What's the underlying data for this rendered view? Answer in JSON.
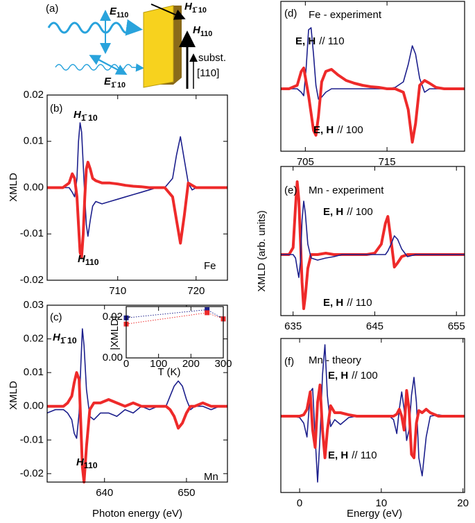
{
  "diagram": {
    "label": "(a)",
    "e_top": {
      "text": "E",
      "sub": "110"
    },
    "e_bottom": {
      "text": "E",
      "sub": "1̄ 10"
    },
    "h_slant": {
      "text": "H",
      "sub": "1̄ 10"
    },
    "h_up": {
      "text": "H",
      "sub": "110"
    },
    "subst": "subst.",
    "direction": "[110]"
  },
  "chart_data": [
    {
      "type": "line",
      "panel_label": "(b)",
      "ylabel": "XMLD",
      "x": [
        701,
        702,
        703,
        703.8,
        704.2,
        704.5,
        704.8,
        705.0,
        705.2,
        705.4,
        705.6,
        705.8,
        706.0,
        706.2,
        706.5,
        706.8,
        707.2,
        708,
        709,
        710,
        711,
        712,
        713,
        714,
        715,
        716,
        717,
        717.5,
        718,
        718.5,
        719,
        719.5,
        720,
        721,
        722,
        723,
        724
      ],
      "xlim": [
        701,
        724
      ],
      "xticks": [
        710,
        720
      ],
      "ylim": [
        -0.02,
        0.02
      ],
      "yticks": [
        {
          "value": -0.02,
          "label": "-0.02"
        },
        {
          "value": -0.01,
          "label": "-0.01"
        },
        {
          "value": 0,
          "label": "0.00"
        },
        {
          "value": 0.01,
          "label": "0.01"
        },
        {
          "value": 0.02,
          "label": "0.02"
        }
      ],
      "series": [
        {
          "color": "#1c1f8c",
          "style": "thin",
          "values": [
            0,
            0,
            0,
            0,
            -0.001,
            -0.002,
            0.002,
            0.01,
            0.014,
            0.012,
            0.005,
            -0.002,
            -0.008,
            -0.0105,
            -0.007,
            -0.004,
            -0.003,
            -0.0035,
            -0.003,
            -0.0025,
            -0.002,
            -0.0015,
            -0.001,
            -0.0005,
            0,
            0,
            0.002,
            0.007,
            0.011,
            0.006,
            0.001,
            -0.0005,
            0,
            0,
            0,
            0,
            0
          ]
        },
        {
          "color": "#ee2a2a",
          "style": "thick",
          "values": [
            0,
            0,
            0,
            0.001,
            0.003,
            0.002,
            -0.002,
            -0.008,
            -0.014,
            -0.015,
            -0.01,
            -0.002,
            0.004,
            0.0055,
            0.004,
            0.002,
            0.0015,
            0.001,
            0.001,
            0.0008,
            0.0005,
            0.0003,
            0.0002,
            0,
            0,
            0,
            -0.002,
            -0.007,
            -0.012,
            -0.006,
            0.001,
            0.0005,
            0,
            0,
            0,
            0,
            0
          ]
        }
      ],
      "annotations": [
        {
          "text": "H",
          "sub": "1̄ 10",
          "color": "#1d2a6e",
          "style": "bold-italic"
        },
        {
          "text": "H",
          "sub": "110",
          "color": "#ee2a2a",
          "style": "bold-italic"
        },
        {
          "text": "Fe",
          "color": "#000000",
          "style": "normal"
        }
      ]
    },
    {
      "type": "line",
      "panel_label": "(c)",
      "ylabel": "XMLD",
      "xlabel": "Photon energy (eV)",
      "x": [
        633,
        634,
        635,
        635.5,
        636,
        636.3,
        636.6,
        636.9,
        637.1,
        637.3,
        637.5,
        637.8,
        638.2,
        638.7,
        639.5,
        640.5,
        641.5,
        642.5,
        643.5,
        644.5,
        645.5,
        646.5,
        647.5,
        648,
        648.5,
        649,
        649.5,
        650,
        650.5,
        651,
        652,
        653,
        654,
        655
      ],
      "xlim": [
        633,
        655
      ],
      "xticks": [
        640,
        650
      ],
      "ylim": [
        -0.0225,
        0.03
      ],
      "yticks": [
        {
          "value": -0.02,
          "label": "-0.02"
        },
        {
          "value": -0.01,
          "label": "-0.01"
        },
        {
          "value": 0,
          "label": "0.00"
        },
        {
          "value": 0.01,
          "label": "0.01"
        },
        {
          "value": 0.02,
          "label": "0.02"
        },
        {
          "value": 0.03,
          "label": "0.03"
        }
      ],
      "series": [
        {
          "color": "#1c1f8c",
          "style": "thin",
          "values": [
            -0.002,
            -0.001,
            -0.001,
            -0.002,
            -0.004,
            -0.008,
            -0.0095,
            -0.002,
            0.012,
            0.023,
            0.018,
            0.005,
            -0.003,
            -0.004,
            -0.002,
            -0.002,
            -0.003,
            -0.001,
            -0.002,
            0,
            -0.001,
            0,
            0,
            0.003,
            0.006,
            0.0075,
            0.006,
            0.002,
            -0.001,
            0,
            0,
            -0.001,
            0,
            0
          ]
        },
        {
          "color": "#ee2a2a",
          "style": "thick",
          "values": [
            0,
            0,
            0,
            0.001,
            0.003,
            0.007,
            0.01,
            0.008,
            -0.005,
            -0.018,
            -0.0225,
            -0.012,
            -0.001,
            0.001,
            0.001,
            0.002,
            0.001,
            0,
            0.001,
            0,
            0,
            0,
            0,
            -0.001,
            -0.003,
            -0.0065,
            -0.005,
            -0.002,
            0,
            0,
            0.001,
            0,
            0,
            0
          ]
        }
      ],
      "annotations": [
        {
          "text": "H",
          "sub": "1̄ 10",
          "color": "#1d2a6e",
          "style": "bold-italic"
        },
        {
          "text": "H",
          "sub": "110",
          "color": "#ee2a2a",
          "style": "bold-italic"
        },
        {
          "text": "Mn",
          "color": "#000000",
          "style": "normal"
        }
      ]
    },
    {
      "type": "scatter",
      "xlabel": "T (K)",
      "ylabel": "|XMLD|",
      "x": [
        0,
        250,
        300
      ],
      "xlim": [
        0,
        300
      ],
      "xticks": [
        0,
        100,
        200,
        300
      ],
      "ylim": [
        0,
        0.025
      ],
      "yticks": [
        {
          "value": 0,
          "label": "0.00"
        },
        {
          "value": 0.02,
          "label": "0.02"
        }
      ],
      "series": [
        {
          "color": "#1c1f8c",
          "values": [
            0.0195,
            0.0235,
            0.019
          ]
        },
        {
          "color": "#ee2a2a",
          "values": [
            0.0165,
            0.022,
            0.019
          ]
        }
      ]
    },
    {
      "type": "line",
      "panel_label": "(d)",
      "title": "Fe - experiment",
      "x": [
        702,
        703,
        704,
        704.5,
        704.8,
        705.1,
        705.4,
        705.7,
        706.0,
        706.3,
        706.6,
        707,
        707.5,
        708.2,
        709,
        710,
        711,
        712,
        713,
        714,
        715,
        716,
        717,
        717.6,
        718.1,
        718.5,
        719,
        719.6,
        720.2,
        721,
        722,
        723,
        724.5
      ],
      "xlim": [
        702,
        724.5
      ],
      "xticks": [
        705,
        715
      ],
      "ylim": [
        -0.9,
        1.26
      ],
      "series": [
        {
          "color": "#1c1f8c",
          "style": "thin",
          "values": [
            0,
            0,
            0,
            -0.05,
            -0.1,
            0.3,
            0.85,
            0.88,
            0.5,
            0.05,
            -0.15,
            -0.12,
            -0.05,
            0,
            0,
            0,
            0,
            0,
            0,
            0,
            0,
            0.02,
            0.1,
            0.35,
            0.62,
            0.5,
            0.15,
            -0.05,
            0,
            0,
            0,
            0,
            0
          ]
        },
        {
          "color": "#ee2a2a",
          "style": "thick",
          "values": [
            0,
            0,
            0.05,
            0.25,
            0.3,
            0.1,
            -0.1,
            -0.35,
            -0.6,
            -0.67,
            -0.4,
            0.1,
            0.25,
            0.28,
            0.2,
            0.12,
            0.08,
            0.05,
            0.03,
            0.02,
            0,
            0,
            -0.05,
            -0.3,
            -0.77,
            -0.5,
            0.05,
            0.12,
            0.08,
            0.02,
            0,
            0,
            0
          ]
        }
      ],
      "annotations": [
        {
          "text": "E, H",
          "tail": "// 110",
          "color": "#2d4a9e",
          "style": "bold"
        },
        {
          "text": "E, H",
          "tail": "// 100",
          "color": "#ee2a2a",
          "style": "bold"
        }
      ]
    },
    {
      "type": "line",
      "panel_label": "(e)",
      "title": "Mn - experiment",
      "ylabel": "XMLD (arb. units)",
      "x": [
        633.5,
        634.5,
        635.0,
        635.3,
        635.5,
        635.7,
        635.9,
        636.1,
        636.3,
        636.5,
        636.8,
        637.2,
        638,
        639,
        640,
        641,
        642,
        643,
        644,
        645,
        645.8,
        646.3,
        646.6,
        647.0,
        647.4,
        647.8,
        648.3,
        649,
        650,
        651,
        652,
        653,
        654,
        655,
        656
      ],
      "xlim": [
        633.5,
        656
      ],
      "xticks": [
        635,
        645,
        655
      ],
      "ylim": [
        -0.88,
        1.27
      ],
      "series": [
        {
          "color": "#ee2a2a",
          "style": "thick",
          "values": [
            0,
            0,
            0.1,
            0.7,
            1.05,
            0.8,
            0.2,
            -0.4,
            -0.78,
            -0.6,
            -0.2,
            0,
            0,
            0.02,
            0,
            0,
            0,
            0,
            0,
            0.02,
            0.15,
            0.45,
            0.55,
            0.2,
            -0.18,
            -0.12,
            -0.03,
            0,
            0,
            0,
            0,
            0,
            0,
            0,
            0
          ]
        },
        {
          "color": "#1c1f8c",
          "style": "thin",
          "values": [
            0,
            0,
            0,
            -0.05,
            -0.2,
            -0.33,
            -0.1,
            0.5,
            0.77,
            0.6,
            0.15,
            -0.05,
            -0.08,
            -0.05,
            -0.03,
            0,
            0,
            0,
            0,
            0,
            0,
            0,
            0.05,
            0.15,
            0.27,
            0.22,
            0.08,
            -0.03,
            0,
            0,
            0,
            0,
            0,
            0,
            0
          ]
        }
      ],
      "annotations": [
        {
          "text": "E, H",
          "tail": "// 100",
          "color": "#2d4a9e",
          "style": "bold"
        },
        {
          "text": "E, H",
          "tail": "// 110",
          "color": "#ee2a2a",
          "style": "bold"
        }
      ]
    },
    {
      "type": "line",
      "panel_label": "(f)",
      "title": "Mn - theory",
      "xlabel": "Energy (eV)",
      "x": [
        -2.3,
        -1,
        0,
        0.5,
        0.9,
        1.3,
        1.6,
        1.9,
        2.2,
        2.5,
        2.8,
        3.1,
        3.4,
        3.8,
        4.3,
        5,
        6,
        7,
        8,
        9,
        10,
        11,
        11.5,
        11.9,
        12.2,
        12.5,
        12.8,
        13.1,
        13.4,
        13.7,
        14.0,
        14.3,
        14.6,
        15,
        15.5,
        16,
        17,
        18,
        19,
        20.2
      ],
      "xlim": [
        -2.3,
        20.2
      ],
      "xticks": [
        0,
        10,
        20
      ],
      "ylim": [
        -1.1,
        1.12
      ],
      "series": [
        {
          "color": "#1c1f8c",
          "style": "thin",
          "values": [
            0,
            0,
            -0.02,
            -0.1,
            -0.3,
            0.35,
            0.4,
            -0.3,
            -0.95,
            -0.3,
            0.6,
            1.03,
            0.3,
            -0.15,
            -0.05,
            -0.12,
            -0.02,
            0,
            0,
            0,
            0,
            0,
            -0.05,
            -0.25,
            0.1,
            0.35,
            0.1,
            -0.35,
            -0.2,
            0.3,
            0.56,
            0.2,
            -0.6,
            -0.86,
            -0.3,
            0,
            0.02,
            0,
            0,
            0
          ]
        },
        {
          "color": "#ee2a2a",
          "style": "thick",
          "values": [
            0,
            0,
            0,
            0.02,
            0.1,
            0.35,
            -0.2,
            -0.45,
            0.2,
            0.45,
            -0.2,
            -0.6,
            -0.2,
            0.15,
            0.05,
            0.05,
            0.02,
            0,
            0,
            0,
            0,
            0,
            0,
            0.03,
            0.1,
            0,
            -0.2,
            0.37,
            0.1,
            -0.55,
            -0.6,
            -0.1,
            0.08,
            0.05,
            0.1,
            0.05,
            0,
            0,
            0,
            0
          ]
        }
      ],
      "annotations": [
        {
          "text": "E, H",
          "tail": "// 100",
          "color": "#2d4a9e",
          "style": "bold"
        },
        {
          "text": "E, H",
          "tail": "// 110",
          "color": "#ee2a2a",
          "style": "bold"
        }
      ]
    }
  ]
}
